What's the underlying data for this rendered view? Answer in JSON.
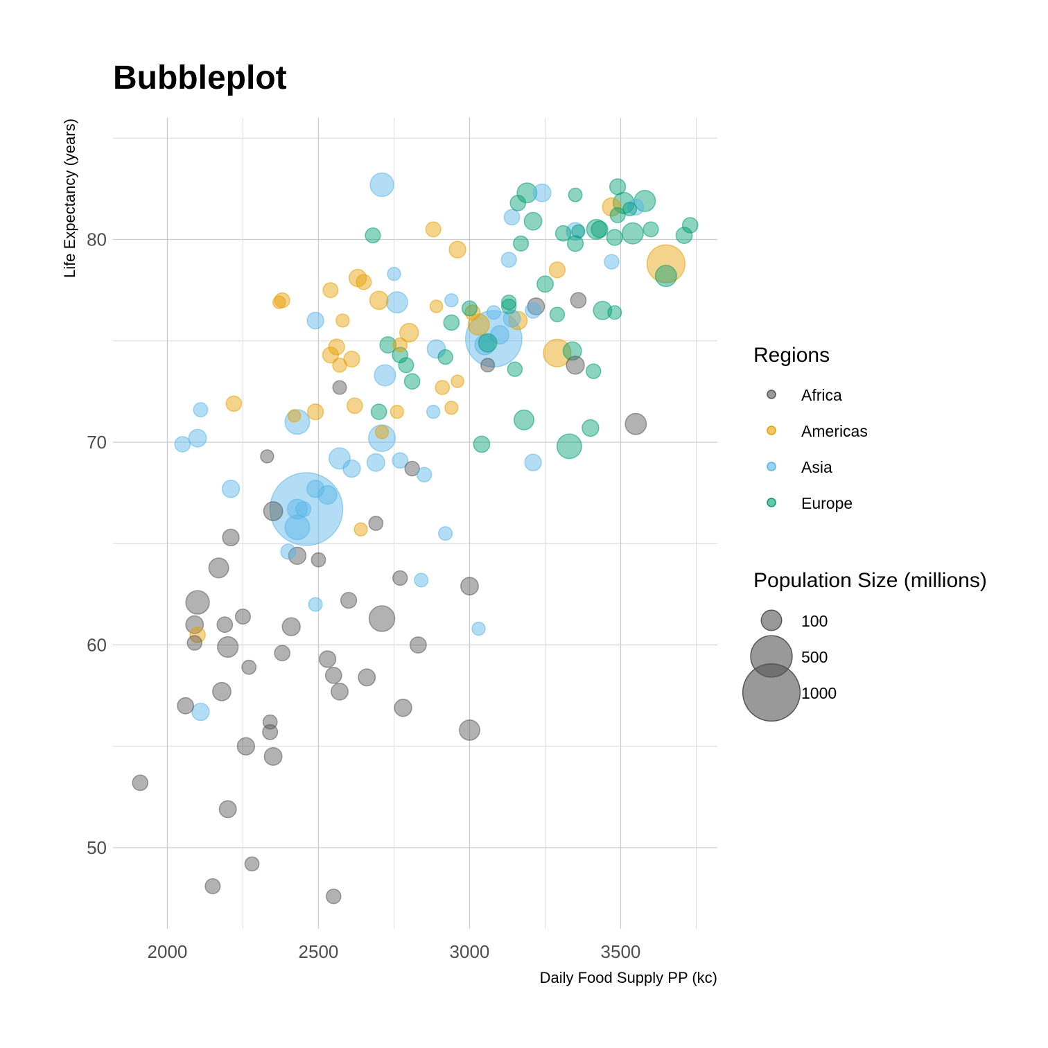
{
  "chart_data": {
    "type": "scatter",
    "title": "Bubbleplot",
    "xlabel": "Daily Food Supply PP (kc)",
    "ylabel": "Life Expectancy (years)",
    "xlim": [
      1820,
      3820
    ],
    "ylim": [
      46,
      86
    ],
    "xticks": [
      2000,
      2500,
      3000,
      3500
    ],
    "yticks": [
      50,
      60,
      70,
      80
    ],
    "grid": true,
    "legend_position": "right",
    "colors": {
      "Africa": "#555555",
      "Americas": "#E69F00",
      "Asia": "#56B4E9",
      "Europe": "#009E73"
    },
    "regions_legend": {
      "title": "Regions",
      "entries": [
        "Africa",
        "Americas",
        "Asia",
        "Europe"
      ]
    },
    "size_legend": {
      "title": "Population Size (millions)",
      "entries": [
        100,
        500,
        1000
      ]
    },
    "series": [
      {
        "name": "Africa",
        "points": [
          [
            1910,
            53.2,
            12
          ],
          [
            2060,
            57,
            14
          ],
          [
            2090,
            61,
            18
          ],
          [
            2090,
            60.1,
            10
          ],
          [
            2100,
            62.1,
            40
          ],
          [
            2150,
            48.1,
            11
          ],
          [
            2170,
            63.8,
            25
          ],
          [
            2180,
            57.7,
            20
          ],
          [
            2190,
            61,
            12
          ],
          [
            2200,
            59.9,
            28
          ],
          [
            2200,
            51.9,
            16
          ],
          [
            2210,
            65.3,
            15
          ],
          [
            2250,
            61.4,
            11
          ],
          [
            2260,
            55,
            17
          ],
          [
            2270,
            58.9,
            9
          ],
          [
            2280,
            49.2,
            9
          ],
          [
            2330,
            69.3,
            7
          ],
          [
            2340,
            56.2,
            9
          ],
          [
            2340,
            55.7,
            11
          ],
          [
            2350,
            66.6,
            22
          ],
          [
            2350,
            54.5,
            18
          ],
          [
            2380,
            59.6,
            12
          ],
          [
            2410,
            60.9,
            19
          ],
          [
            2430,
            64.4,
            17
          ],
          [
            2500,
            64.2,
            9
          ],
          [
            2530,
            59.3,
            15
          ],
          [
            2550,
            58.5,
            14
          ],
          [
            2550,
            47.6,
            10
          ],
          [
            2570,
            72.7,
            8
          ],
          [
            2570,
            57.7,
            16
          ],
          [
            2600,
            62.2,
            13
          ],
          [
            2660,
            58.4,
            16
          ],
          [
            2690,
            66,
            9
          ],
          [
            2710,
            61.3,
            50
          ],
          [
            2770,
            63.3,
            10
          ],
          [
            2780,
            56.9,
            17
          ],
          [
            2810,
            68.7,
            10
          ],
          [
            2830,
            60,
            14
          ],
          [
            3000,
            62.9,
            18
          ],
          [
            3000,
            55.8,
            27
          ],
          [
            3060,
            73.8,
            8
          ],
          [
            3220,
            76.7,
            16
          ],
          [
            3350,
            73.8,
            19
          ],
          [
            3360,
            77,
            12
          ],
          [
            3550,
            70.9,
            30
          ]
        ]
      },
      {
        "name": "Americas",
        "points": [
          [
            2100,
            60.5,
            12
          ],
          [
            2220,
            71.9,
            12
          ],
          [
            2370,
            76.9,
            6
          ],
          [
            2380,
            77,
            11
          ],
          [
            2420,
            71.3,
            6
          ],
          [
            2490,
            71.5,
            13
          ],
          [
            2540,
            77.5,
            11
          ],
          [
            2540,
            74.3,
            13
          ],
          [
            2560,
            74.7,
            13
          ],
          [
            2570,
            73.8,
            9
          ],
          [
            2580,
            76,
            7
          ],
          [
            2610,
            74.1,
            13
          ],
          [
            2620,
            71.8,
            12
          ],
          [
            2630,
            78.1,
            17
          ],
          [
            2640,
            65.7,
            7
          ],
          [
            2650,
            77.9,
            11
          ],
          [
            2700,
            77,
            20
          ],
          [
            2710,
            70.5,
            7
          ],
          [
            2760,
            71.5,
            7
          ],
          [
            2770,
            74.8,
            9
          ],
          [
            2800,
            75.4,
            21
          ],
          [
            2880,
            80.5,
            11
          ],
          [
            2890,
            76.7,
            6
          ],
          [
            2910,
            72.7,
            9
          ],
          [
            2940,
            71.7,
            7
          ],
          [
            2960,
            79.5,
            15
          ],
          [
            2960,
            73,
            6
          ],
          [
            3010,
            76.4,
            11
          ],
          [
            3030,
            75.8,
            30
          ],
          [
            3160,
            76,
            20
          ],
          [
            3290,
            78.5,
            13
          ],
          [
            3290,
            74.4,
            60
          ],
          [
            3470,
            81.6,
            20
          ],
          [
            3650,
            78.8,
            130
          ]
        ]
      },
      {
        "name": "Asia",
        "points": [
          [
            2050,
            69.9,
            12
          ],
          [
            2100,
            70.2,
            18
          ],
          [
            2110,
            71.6,
            9
          ],
          [
            2110,
            56.7,
            17
          ],
          [
            2210,
            67.7,
            17
          ],
          [
            2400,
            64.6,
            11
          ],
          [
            2430,
            71,
            45
          ],
          [
            2430,
            66.7,
            25
          ],
          [
            2430,
            65.8,
            45
          ],
          [
            2450,
            66.7,
            11
          ],
          [
            2460,
            66.7,
            560
          ],
          [
            2490,
            76,
            15
          ],
          [
            2490,
            67.7,
            17
          ],
          [
            2490,
            62,
            8
          ],
          [
            2530,
            67.4,
            21
          ],
          [
            2570,
            69.2,
            30
          ],
          [
            2610,
            68.7,
            17
          ],
          [
            2690,
            69,
            18
          ],
          [
            2710,
            82.7,
            40
          ],
          [
            2710,
            70.2,
            55
          ],
          [
            2720,
            73.3,
            30
          ],
          [
            2750,
            78.3,
            7
          ],
          [
            2760,
            76.9,
            30
          ],
          [
            2770,
            69.1,
            12
          ],
          [
            2840,
            63.2,
            8
          ],
          [
            2850,
            68.4,
            10
          ],
          [
            2880,
            71.5,
            7
          ],
          [
            2890,
            74.6,
            20
          ],
          [
            2920,
            65.5,
            8
          ],
          [
            2940,
            77,
            7
          ],
          [
            3030,
            60.8,
            7
          ],
          [
            3050,
            74.8,
            25
          ],
          [
            3080,
            75.1,
            320
          ],
          [
            3080,
            76.4,
            8
          ],
          [
            3100,
            75.3,
            20
          ],
          [
            3130,
            79,
            11
          ],
          [
            3140,
            81.1,
            12
          ],
          [
            3140,
            76.1,
            16
          ],
          [
            3210,
            76.5,
            12
          ],
          [
            3210,
            69,
            15
          ],
          [
            3240,
            82.3,
            18
          ],
          [
            3350,
            80.4,
            18
          ],
          [
            3470,
            78.9,
            10
          ],
          [
            3550,
            81.6,
            13
          ]
        ]
      },
      {
        "name": "Europe",
        "points": [
          [
            2680,
            80.2,
            11
          ],
          [
            2700,
            71.5,
            12
          ],
          [
            2730,
            74.8,
            14
          ],
          [
            2770,
            74.3,
            12
          ],
          [
            2790,
            73.8,
            11
          ],
          [
            2810,
            73,
            12
          ],
          [
            2920,
            74.2,
            10
          ],
          [
            2940,
            75.9,
            12
          ],
          [
            3000,
            76.6,
            11
          ],
          [
            3040,
            69.9,
            14
          ],
          [
            3060,
            74.9,
            20
          ],
          [
            3130,
            76.9,
            10
          ],
          [
            3130,
            76.7,
            10
          ],
          [
            3150,
            73.6,
            10
          ],
          [
            3160,
            81.8,
            12
          ],
          [
            3170,
            79.8,
            11
          ],
          [
            3180,
            71.1,
            25
          ],
          [
            3190,
            82.3,
            25
          ],
          [
            3210,
            80.9,
            18
          ],
          [
            3250,
            77.8,
            14
          ],
          [
            3290,
            76.3,
            10
          ],
          [
            3310,
            80.3,
            12
          ],
          [
            3330,
            69.8,
            45
          ],
          [
            3340,
            74.5,
            20
          ],
          [
            3350,
            82.2,
            8
          ],
          [
            3350,
            79.8,
            13
          ],
          [
            3360,
            80.4,
            7
          ],
          [
            3400,
            70.7,
            15
          ],
          [
            3410,
            73.5,
            10
          ],
          [
            3420,
            80.5,
            25
          ],
          [
            3430,
            80.5,
            15
          ],
          [
            3440,
            76.5,
            20
          ],
          [
            3480,
            80.1,
            13
          ],
          [
            3480,
            76.4,
            8
          ],
          [
            3490,
            81.2,
            11
          ],
          [
            3490,
            82.6,
            13
          ],
          [
            3510,
            81.8,
            30
          ],
          [
            3530,
            81.5,
            8
          ],
          [
            3540,
            80.3,
            30
          ],
          [
            3580,
            81.9,
            30
          ],
          [
            3600,
            80.5,
            11
          ],
          [
            3650,
            78.2,
            30
          ],
          [
            3710,
            80.2,
            14
          ],
          [
            3730,
            80.7,
            12
          ]
        ]
      }
    ]
  }
}
